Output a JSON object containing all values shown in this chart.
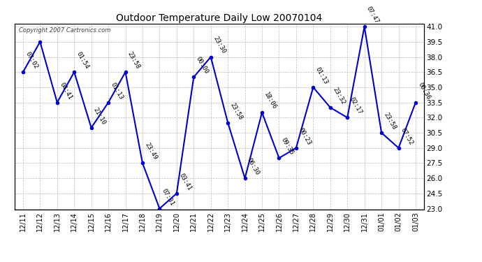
{
  "title": "Outdoor Temperature Daily Low 20070104",
  "copyright_text": "Copyright 2007 Cartronics.com",
  "background_color": "#ffffff",
  "line_color": "#0000cc",
  "marker_color": "#0000cc",
  "grid_color": "#bbbbbb",
  "text_color": "#000000",
  "dates": [
    "12/11",
    "12/12",
    "12/13",
    "12/14",
    "12/15",
    "12/16",
    "12/17",
    "12/18",
    "12/19",
    "12/20",
    "12/21",
    "12/22",
    "12/23",
    "12/24",
    "12/25",
    "12/26",
    "12/27",
    "12/28",
    "12/29",
    "12/30",
    "12/31",
    "01/01",
    "01/02",
    "01/03"
  ],
  "values": [
    36.5,
    39.5,
    33.5,
    36.5,
    31.0,
    33.5,
    36.5,
    27.5,
    23.0,
    24.5,
    36.0,
    38.0,
    31.5,
    26.0,
    32.5,
    28.0,
    29.0,
    35.0,
    33.0,
    32.0,
    41.0,
    30.5,
    29.0,
    33.5
  ],
  "labels": [
    "07:02",
    "",
    "04:41",
    "01:54",
    "21:10",
    "01:13",
    "23:58",
    "23:49",
    "07:31",
    "03:41",
    "00:00",
    "23:30",
    "23:58",
    "06:30",
    "18:06",
    "09:35",
    "00:23",
    "01:13",
    "23:32",
    "02:17",
    "07:47",
    "23:58",
    "07:52",
    "00:36"
  ],
  "ylim_min": 23.0,
  "ylim_max": 41.0,
  "ytick_step": 1.5,
  "fig_width": 6.9,
  "fig_height": 3.75,
  "dpi": 100
}
